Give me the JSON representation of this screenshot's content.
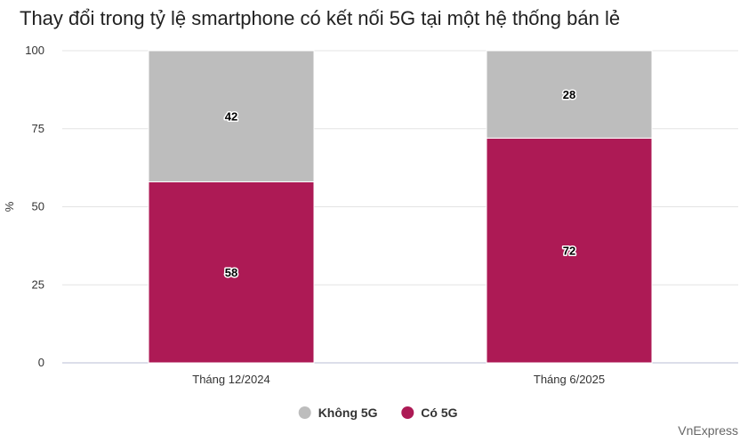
{
  "chart_data": {
    "type": "bar",
    "stacked": true,
    "title": "Thay đổi trong tỷ lệ smartphone có kết nối 5G tại một hệ thống bán lẻ",
    "ylabel": "%",
    "xlabel": "",
    "ylim": [
      0,
      100
    ],
    "yticks": [
      0,
      25,
      50,
      75,
      100
    ],
    "categories": [
      "Tháng 12/2024",
      "Tháng 6/2025"
    ],
    "series": [
      {
        "name": "Có 5G",
        "values": [
          58,
          72
        ],
        "color": "#ad1a55"
      },
      {
        "name": "Không 5G",
        "values": [
          42,
          28
        ],
        "color": "#bdbdbd"
      }
    ],
    "legend_order": [
      "Không 5G",
      "Có 5G"
    ],
    "legend_position": "bottom-center",
    "grid": true
  },
  "source": "VnExpress"
}
